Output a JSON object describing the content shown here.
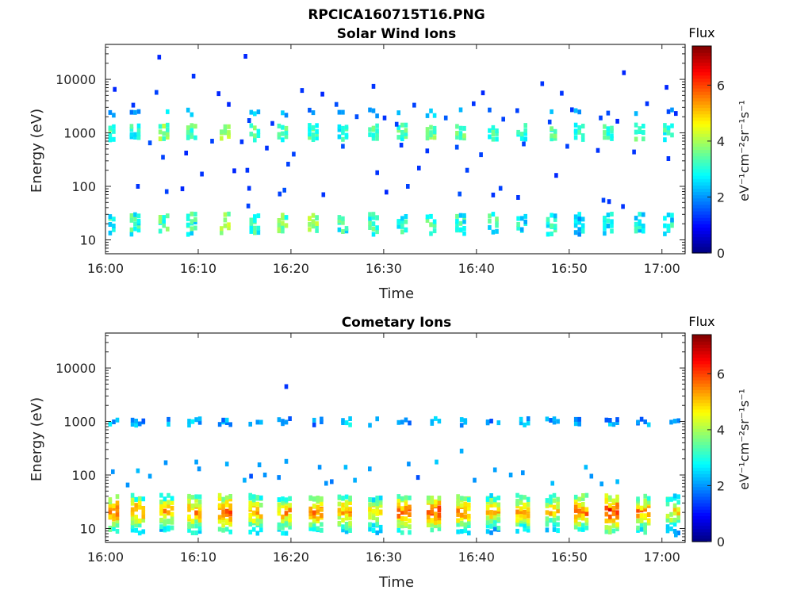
{
  "figure_title": "RPCICA160715T16.PNG",
  "colors": {
    "jet": [
      "#00007f",
      "#0000ff",
      "#007fff",
      "#00ffff",
      "#7fff7f",
      "#ffff00",
      "#ff7f00",
      "#ff0000",
      "#7f0000"
    ]
  },
  "chart_data": [
    {
      "type": "heatmap",
      "title": "Solar Wind Ions",
      "xlabel": "Time",
      "ylabel": "Energy (eV)",
      "yscale": "log",
      "ylim": [
        5.5,
        45000
      ],
      "xlim_minutes": [
        0,
        62.5
      ],
      "x_tick_labels": [
        "16:00",
        "16:10",
        "16:20",
        "16:30",
        "16:40",
        "16:50",
        "17:00"
      ],
      "x_tick_minutes": [
        0,
        10,
        20,
        30,
        40,
        50,
        60
      ],
      "y_tick_labels": [
        "10",
        "100",
        "1000",
        "10000"
      ],
      "y_tick_values": [
        10,
        100,
        1000,
        10000
      ],
      "colorbar": {
        "title": "Flux",
        "label": "eV⁻¹cm⁻²sr⁻¹s⁻¹",
        "range": [
          0,
          7.4
        ],
        "tick_labels": [
          "0",
          "2",
          "4",
          "6"
        ],
        "tick_values": [
          0,
          2,
          4,
          6
        ]
      },
      "bursts": [
        {
          "t": 0.5,
          "low": 3.0,
          "mid": 3.2
        },
        {
          "t": 3.2,
          "low": 3.0,
          "mid": 3.0
        },
        {
          "t": 6.3,
          "low": 3.4,
          "mid": 3.6
        },
        {
          "t": 9.3,
          "low": 3.0,
          "mid": 3.4
        },
        {
          "t": 12.9,
          "low": 3.8,
          "mid": 3.9
        },
        {
          "t": 16.1,
          "low": 3.0,
          "mid": 3.4
        },
        {
          "t": 19.1,
          "low": 3.4,
          "mid": 3.3
        },
        {
          "t": 22.4,
          "low": 3.6,
          "mid": 3.1
        },
        {
          "t": 25.6,
          "low": 3.0,
          "mid": 3.0
        },
        {
          "t": 28.9,
          "low": 3.2,
          "mid": 3.2
        },
        {
          "t": 32.0,
          "low": 3.0,
          "mid": 3.3
        },
        {
          "t": 35.1,
          "low": 3.4,
          "mid": 3.5
        },
        {
          "t": 38.3,
          "low": 2.9,
          "mid": 3.3
        },
        {
          "t": 41.8,
          "low": 3.0,
          "mid": 3.1
        },
        {
          "t": 44.9,
          "low": 2.8,
          "mid": 3.0
        },
        {
          "t": 48.1,
          "low": 2.9,
          "mid": 3.2
        },
        {
          "t": 51.1,
          "low": 2.6,
          "mid": 3.2
        },
        {
          "t": 54.2,
          "low": 2.9,
          "mid": 3.0
        },
        {
          "t": 57.6,
          "low": 2.9,
          "mid": 3.3
        },
        {
          "t": 60.7,
          "low": 2.8,
          "mid": 3.0
        }
      ],
      "scatter": [
        [
          5.6,
          26000,
          1.2
        ],
        [
          14.9,
          27000,
          1.2
        ],
        [
          9.3,
          11500,
          1.3
        ],
        [
          0.8,
          6500,
          1.2
        ],
        [
          28.7,
          7400,
          1.3
        ],
        [
          40.5,
          5600,
          1.2
        ],
        [
          46.9,
          8300,
          1.3
        ],
        [
          55.7,
          13300,
          1.2
        ],
        [
          60.3,
          7100,
          1.2
        ],
        [
          5.3,
          5700,
          1.4
        ],
        [
          12.0,
          5400,
          1.2
        ],
        [
          21.0,
          6200,
          1.3
        ],
        [
          23.2,
          5300,
          1.2
        ],
        [
          2.8,
          3300,
          1.3
        ],
        [
          13.1,
          3400,
          1.2
        ],
        [
          24.7,
          3400,
          1.5
        ],
        [
          33.1,
          3300,
          1.4
        ],
        [
          39.5,
          3500,
          1.3
        ],
        [
          44.2,
          2600,
          1.4
        ],
        [
          49.0,
          5500,
          1.3
        ],
        [
          58.2,
          3500,
          1.3
        ],
        [
          61.3,
          2300,
          1.2
        ],
        [
          26.9,
          2000,
          1.5
        ],
        [
          29.9,
          1900,
          1.3
        ],
        [
          36.5,
          1900,
          1.6
        ],
        [
          42.7,
          1800,
          1.4
        ],
        [
          53.2,
          1900,
          1.4
        ],
        [
          50.1,
          2700,
          1.3
        ],
        [
          15.3,
          1700,
          1.4
        ],
        [
          17.8,
          1500,
          1.3
        ],
        [
          47.7,
          1600,
          1.4
        ],
        [
          55.0,
          1650,
          1.2
        ],
        [
          31.2,
          1450,
          1.4
        ],
        [
          4.6,
          650,
          1.5
        ],
        [
          11.3,
          700,
          1.4
        ],
        [
          14.5,
          680,
          1.3
        ],
        [
          17.2,
          520,
          1.3
        ],
        [
          20.1,
          400,
          1.4
        ],
        [
          25.4,
          560,
          1.5
        ],
        [
          31.7,
          590,
          1.3
        ],
        [
          34.5,
          460,
          1.3
        ],
        [
          37.7,
          540,
          1.5
        ],
        [
          40.3,
          390,
          1.4
        ],
        [
          44.9,
          620,
          1.4
        ],
        [
          49.6,
          560,
          1.4
        ],
        [
          52.9,
          470,
          1.3
        ],
        [
          56.8,
          440,
          1.3
        ],
        [
          60.5,
          330,
          1.3
        ],
        [
          6.0,
          350,
          1.4
        ],
        [
          8.5,
          420,
          1.2
        ],
        [
          15.1,
          200,
          1.3
        ],
        [
          19.5,
          260,
          1.4
        ],
        [
          29.1,
          180,
          1.3
        ],
        [
          33.6,
          220,
          1.3
        ],
        [
          38.8,
          200,
          1.4
        ],
        [
          48.4,
          160,
          1.2
        ],
        [
          3.3,
          100,
          1.3
        ],
        [
          6.4,
          80,
          1.4
        ],
        [
          8.1,
          90,
          1.2
        ],
        [
          10.2,
          170,
          1.3
        ],
        [
          13.7,
          195,
          1.2
        ],
        [
          15.3,
          92,
          1.3
        ],
        [
          18.6,
          72,
          1.4
        ],
        [
          19.1,
          85,
          1.5
        ],
        [
          23.3,
          70,
          1.3
        ],
        [
          30.1,
          78,
          1.2
        ],
        [
          32.4,
          100,
          1.4
        ],
        [
          38.0,
          72,
          1.5
        ],
        [
          41.6,
          69,
          1.3
        ],
        [
          42.4,
          92,
          1.4
        ],
        [
          44.3,
          62,
          1.3
        ],
        [
          53.5,
          55,
          1.4
        ],
        [
          54.1,
          52,
          1.3
        ],
        [
          55.6,
          42,
          1.3
        ],
        [
          15.2,
          43,
          1.4
        ]
      ]
    },
    {
      "type": "heatmap",
      "title": "Cometary Ions",
      "xlabel": "Time",
      "ylabel": "Energy (eV)",
      "yscale": "log",
      "ylim": [
        5.5,
        45000
      ],
      "xlim_minutes": [
        0,
        62.5
      ],
      "x_tick_labels": [
        "16:00",
        "16:10",
        "16:20",
        "16:30",
        "16:40",
        "16:50",
        "17:00"
      ],
      "x_tick_minutes": [
        0,
        10,
        20,
        30,
        40,
        50,
        60
      ],
      "y_tick_labels": [
        "10",
        "100",
        "1000",
        "10000"
      ],
      "y_tick_values": [
        10,
        100,
        1000,
        10000
      ],
      "colorbar": {
        "title": "Flux",
        "label": "eV⁻¹cm⁻²sr⁻¹s⁻¹",
        "range": [
          0,
          7.4
        ],
        "tick_labels": [
          "0",
          "2",
          "4",
          "6"
        ],
        "tick_values": [
          0,
          2,
          4,
          6
        ]
      },
      "bursts": [
        {
          "t": 0.7,
          "low": 5.8,
          "mid": 2.2
        },
        {
          "t": 3.5,
          "low": 5.3,
          "mid": 2.1
        },
        {
          "t": 6.6,
          "low": 5.2,
          "mid": 2.0
        },
        {
          "t": 9.6,
          "low": 5.5,
          "mid": 2.2
        },
        {
          "t": 12.9,
          "low": 6.0,
          "mid": 2.1
        },
        {
          "t": 16.2,
          "low": 5.2,
          "mid": 2.0
        },
        {
          "t": 19.3,
          "low": 5.3,
          "mid": 2.0
        },
        {
          "t": 22.7,
          "low": 5.7,
          "mid": 2.0
        },
        {
          "t": 25.8,
          "low": 5.4,
          "mid": 2.5
        },
        {
          "t": 29.1,
          "low": 5.0,
          "mid": 2.0
        },
        {
          "t": 32.2,
          "low": 5.8,
          "mid": 2.2
        },
        {
          "t": 35.4,
          "low": 6.1,
          "mid": 2.2
        },
        {
          "t": 38.6,
          "low": 5.5,
          "mid": 2.1
        },
        {
          "t": 41.8,
          "low": 5.0,
          "mid": 2.0
        },
        {
          "t": 45.0,
          "low": 5.2,
          "mid": 2.0
        },
        {
          "t": 48.2,
          "low": 5.0,
          "mid": 2.1
        },
        {
          "t": 51.3,
          "low": 5.6,
          "mid": 2.0
        },
        {
          "t": 54.6,
          "low": 6.2,
          "mid": 2.0
        },
        {
          "t": 58.0,
          "low": 5.5,
          "mid": 2.1
        },
        {
          "t": 61.2,
          "low": 4.8,
          "mid": 1.9
        }
      ],
      "scatter": [
        [
          19.3,
          4500,
          1.3
        ],
        [
          3.3,
          120,
          2.3
        ],
        [
          6.3,
          170,
          2.0
        ],
        [
          9.6,
          175,
          2.1
        ],
        [
          9.9,
          130,
          2.0
        ],
        [
          12.9,
          160,
          2.2
        ],
        [
          16.4,
          155,
          2.1
        ],
        [
          19.3,
          180,
          2.1
        ],
        [
          22.9,
          140,
          2.0
        ],
        [
          25.7,
          140,
          2.3
        ],
        [
          28.3,
          130,
          2.1
        ],
        [
          32.5,
          160,
          2.0
        ],
        [
          35.5,
          175,
          2.4
        ],
        [
          38.2,
          280,
          2.2
        ],
        [
          41.8,
          125,
          2.1
        ],
        [
          44.8,
          110,
          2.0
        ],
        [
          51.6,
          140,
          2.3
        ],
        [
          2.2,
          65,
          2.0
        ],
        [
          4.6,
          95,
          2.1
        ],
        [
          14.8,
          80,
          2.2
        ],
        [
          15.5,
          95,
          1.5
        ],
        [
          17.0,
          100,
          2.0
        ],
        [
          18.5,
          90,
          1.9
        ],
        [
          23.6,
          70,
          2.0
        ],
        [
          24.2,
          75,
          1.8
        ],
        [
          26.7,
          80,
          2.2
        ],
        [
          33.5,
          90,
          1.5
        ],
        [
          39.6,
          80,
          2.0
        ],
        [
          43.5,
          100,
          2.1
        ],
        [
          48.0,
          70,
          2.3
        ],
        [
          52.2,
          95,
          2.0
        ],
        [
          53.3,
          68,
          2.1
        ],
        [
          55.0,
          75,
          2.3
        ],
        [
          61.3,
          7.6,
          2.2
        ],
        [
          0.6,
          115,
          2.0
        ]
      ]
    }
  ]
}
